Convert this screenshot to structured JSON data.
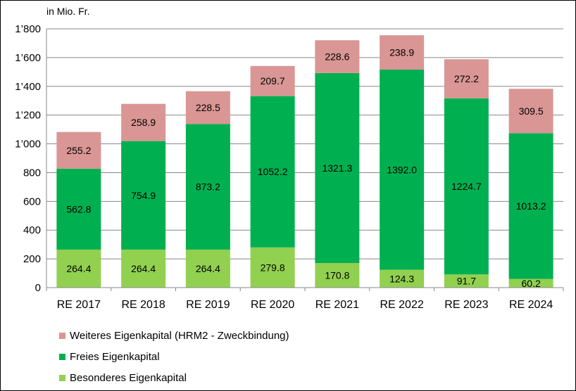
{
  "chart_data": {
    "type": "bar",
    "stacked": true,
    "unit_label": "in Mio. Fr.",
    "categories": [
      "RE 2017",
      "RE 2018",
      "RE 2019",
      "RE 2020",
      "RE 2021",
      "RE 2022",
      "RE 2023",
      "RE 2024"
    ],
    "series": [
      {
        "name": "Besonderes Eigenkapital",
        "color": "#92d050",
        "values": [
          264.4,
          264.4,
          264.4,
          279.8,
          170.8,
          124.3,
          91.7,
          60.2
        ],
        "labels": [
          "264.4",
          "264.4",
          "264.4",
          "279.8",
          "170.8",
          "124.3",
          "91.7",
          "60.2"
        ]
      },
      {
        "name": "Freies Eigenkapital",
        "color": "#00b050",
        "values": [
          562.8,
          754.9,
          873.2,
          1052.2,
          1321.3,
          1392.0,
          1224.7,
          1013.2
        ],
        "labels": [
          "562.8",
          "754.9",
          "873.2",
          "1052.2",
          "1321.3",
          "1392.0",
          "1224.7",
          "1013.2"
        ]
      },
      {
        "name": "Weiteres Eigenkapital (HRM2 - Zweckbindung)",
        "color": "#d99694",
        "values": [
          255.2,
          258.9,
          228.5,
          209.7,
          228.6,
          238.9,
          272.2,
          309.5
        ],
        "labels": [
          "255.2",
          "258.9",
          "228.5",
          "209.7",
          "228.6",
          "238.9",
          "272.2",
          "309.5"
        ]
      }
    ],
    "ylim": [
      0,
      1800
    ],
    "yticks": [
      0,
      200,
      400,
      600,
      800,
      1000,
      1200,
      1400,
      1600,
      1800
    ],
    "ytick_labels": [
      "0",
      "200",
      "400",
      "600",
      "800",
      "1’000",
      "1’200",
      "1’400",
      "1’600",
      "1’800"
    ],
    "grid": true,
    "legend": [
      {
        "name": "Weiteres Eigenkapital (HRM2 - Zweckbindung)",
        "color": "#d99694"
      },
      {
        "name": "Freies Eigenkapital",
        "color": "#00b050"
      },
      {
        "name": "Besonderes Eigenkapital",
        "color": "#92d050"
      }
    ],
    "legend_position": "bottom-left"
  }
}
